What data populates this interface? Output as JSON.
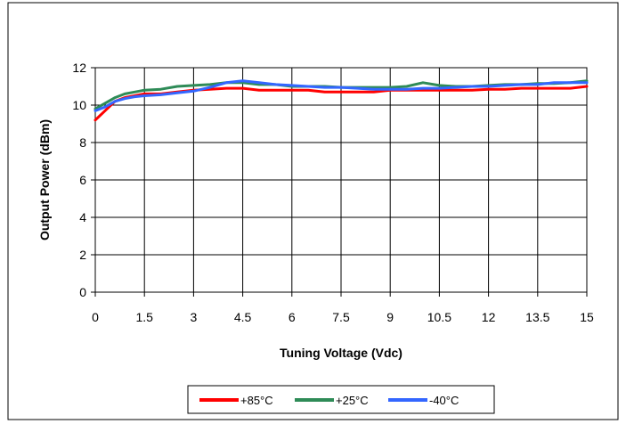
{
  "chart_data": {
    "type": "line",
    "xlabel": "Tuning Voltage (Vdc)",
    "ylabel": "Output Power (dBm)",
    "xlim": [
      0,
      15
    ],
    "ylim": [
      0,
      12
    ],
    "x_ticks": [
      "0",
      "1.5",
      "3",
      "4.5",
      "6",
      "7.5",
      "9",
      "10.5",
      "12",
      "13.5",
      "15"
    ],
    "y_ticks": [
      "0",
      "2",
      "4",
      "6",
      "8",
      "10",
      "12"
    ],
    "grid": true,
    "legend_position": "bottom",
    "series": [
      {
        "name": "+85°C",
        "color": "#ff0000",
        "x": [
          0,
          0.3,
          0.6,
          0.9,
          1.2,
          1.5,
          2,
          2.5,
          3,
          3.5,
          4,
          4.5,
          5,
          5.5,
          6,
          6.5,
          7,
          7.5,
          8,
          8.5,
          9,
          9.5,
          10,
          10.5,
          11,
          11.5,
          12,
          12.5,
          13,
          13.5,
          14,
          14.5,
          15
        ],
        "y": [
          9.2,
          9.7,
          10.2,
          10.4,
          10.5,
          10.6,
          10.6,
          10.7,
          10.8,
          10.85,
          10.9,
          10.9,
          10.8,
          10.8,
          10.8,
          10.8,
          10.7,
          10.7,
          10.7,
          10.7,
          10.8,
          10.8,
          10.8,
          10.8,
          10.8,
          10.8,
          10.85,
          10.85,
          10.9,
          10.9,
          10.9,
          10.9,
          11.0
        ]
      },
      {
        "name": "+25°C",
        "color": "#2e8b57",
        "x": [
          0,
          0.3,
          0.6,
          0.9,
          1.2,
          1.5,
          2,
          2.5,
          3,
          3.5,
          4,
          4.5,
          5,
          5.5,
          6,
          6.5,
          7,
          7.5,
          8,
          8.5,
          9,
          9.5,
          10,
          10.5,
          11,
          11.5,
          12,
          12.5,
          13,
          13.5,
          14,
          14.5,
          15
        ],
        "y": [
          9.8,
          10.1,
          10.4,
          10.6,
          10.7,
          10.8,
          10.85,
          11.0,
          11.05,
          11.1,
          11.2,
          11.2,
          11.1,
          11.1,
          11.0,
          11.0,
          11.0,
          10.95,
          10.95,
          10.95,
          10.95,
          11.0,
          11.2,
          11.05,
          11.0,
          11.0,
          11.05,
          11.1,
          11.1,
          11.15,
          11.15,
          11.2,
          11.3
        ]
      },
      {
        "name": "-40°C",
        "color": "#3366ff",
        "x": [
          0,
          0.3,
          0.6,
          0.9,
          1.2,
          1.5,
          2,
          2.5,
          3,
          3.5,
          4,
          4.5,
          5,
          5.5,
          6,
          6.5,
          7,
          7.5,
          8,
          8.5,
          9,
          9.5,
          10,
          10.5,
          11,
          11.5,
          12,
          12.5,
          13,
          13.5,
          14,
          14.5,
          15
        ],
        "y": [
          9.7,
          9.9,
          10.2,
          10.35,
          10.45,
          10.5,
          10.55,
          10.65,
          10.75,
          10.95,
          11.2,
          11.3,
          11.2,
          11.1,
          11.05,
          11.0,
          10.95,
          10.95,
          10.9,
          10.85,
          10.85,
          10.85,
          10.9,
          10.9,
          10.95,
          11.0,
          11.0,
          11.05,
          11.1,
          11.1,
          11.2,
          11.2,
          11.2
        ]
      }
    ]
  }
}
